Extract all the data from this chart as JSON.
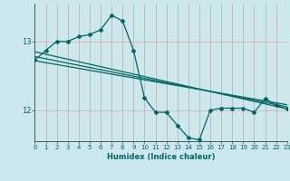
{
  "xlabel": "Humidex (Indice chaleur)",
  "background_color": "#cce8ec",
  "grid_color_v": "#d4b8b8",
  "grid_color_h": "#e8c8c8",
  "line_color": "#006666",
  "x_ticks": [
    0,
    1,
    2,
    3,
    4,
    5,
    6,
    7,
    8,
    9,
    10,
    11,
    12,
    13,
    14,
    15,
    16,
    17,
    18,
    19,
    20,
    21,
    22,
    23
  ],
  "y_ticks": [
    12,
    13
  ],
  "ylim": [
    11.55,
    13.55
  ],
  "xlim": [
    0,
    23
  ],
  "jagged_x": [
    0,
    1,
    2,
    3,
    4,
    5,
    6,
    7,
    8,
    9,
    10,
    11,
    12,
    13,
    14,
    15,
    16,
    17,
    18,
    19,
    20,
    21,
    22,
    23
  ],
  "jagged_y": [
    12.73,
    12.87,
    13.0,
    13.0,
    13.07,
    13.1,
    13.17,
    13.38,
    13.3,
    12.87,
    12.18,
    11.97,
    11.97,
    11.78,
    11.6,
    11.57,
    12.0,
    12.03,
    12.03,
    12.03,
    11.97,
    12.17,
    12.07,
    12.02
  ],
  "line1_x": [
    0,
    23
  ],
  "line1_y": [
    12.85,
    12.02
  ],
  "line2_x": [
    0,
    23
  ],
  "line2_y": [
    12.78,
    12.05
  ],
  "line3_x": [
    0,
    23
  ],
  "line3_y": [
    12.72,
    12.08
  ]
}
